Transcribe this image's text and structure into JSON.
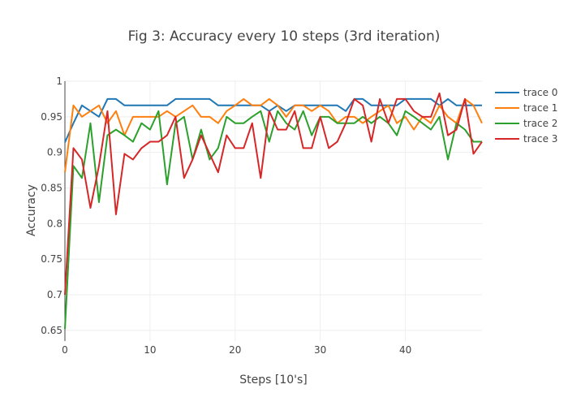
{
  "chart_data": {
    "type": "line",
    "title": "Fig 3: Accuracy every 10 steps (3rd iteration)",
    "xlabel": "Steps [10's]",
    "ylabel": "Accuracy",
    "xlim": [
      0,
      49
    ],
    "ylim": [
      0.635,
      1.0
    ],
    "xticks": [
      0,
      10,
      20,
      30,
      40
    ],
    "yticks": [
      0.65,
      0.7,
      0.75,
      0.8,
      0.85,
      0.9,
      0.95,
      1
    ],
    "ytick_labels": [
      "0.65",
      "0.7",
      "0.75",
      "0.8",
      "0.85",
      "0.9",
      "0.95",
      "1"
    ],
    "grid": true,
    "legend_position": "top-right",
    "x": [
      0,
      1,
      2,
      3,
      4,
      5,
      6,
      7,
      8,
      9,
      10,
      11,
      12,
      13,
      14,
      15,
      16,
      17,
      18,
      19,
      20,
      21,
      22,
      23,
      24,
      25,
      26,
      27,
      28,
      29,
      30,
      31,
      32,
      33,
      34,
      35,
      36,
      37,
      38,
      39,
      40,
      41,
      42,
      43,
      44,
      45,
      46,
      47,
      48,
      49
    ],
    "series": [
      {
        "name": "trace 0",
        "color": "#1f77b4",
        "values": [
          0.914,
          0.941,
          0.966,
          0.958,
          0.95,
          0.975,
          0.975,
          0.966,
          0.966,
          0.966,
          0.966,
          0.966,
          0.966,
          0.975,
          0.975,
          0.975,
          0.975,
          0.975,
          0.966,
          0.966,
          0.966,
          0.966,
          0.966,
          0.966,
          0.958,
          0.966,
          0.958,
          0.966,
          0.966,
          0.966,
          0.966,
          0.966,
          0.966,
          0.958,
          0.975,
          0.975,
          0.966,
          0.966,
          0.966,
          0.966,
          0.975,
          0.975,
          0.975,
          0.975,
          0.966,
          0.975,
          0.966,
          0.966,
          0.966,
          0.966
        ]
      },
      {
        "name": "trace 1",
        "color": "#ff7f0e",
        "values": [
          0.872,
          0.966,
          0.95,
          0.958,
          0.966,
          0.941,
          0.958,
          0.924,
          0.95,
          0.95,
          0.95,
          0.95,
          0.958,
          0.95,
          0.958,
          0.966,
          0.95,
          0.95,
          0.941,
          0.958,
          0.966,
          0.975,
          0.966,
          0.966,
          0.975,
          0.966,
          0.95,
          0.966,
          0.966,
          0.958,
          0.966,
          0.958,
          0.941,
          0.95,
          0.95,
          0.941,
          0.95,
          0.958,
          0.966,
          0.941,
          0.95,
          0.932,
          0.95,
          0.941,
          0.966,
          0.95,
          0.941,
          0.975,
          0.966,
          0.941
        ]
      },
      {
        "name": "trace 2",
        "color": "#2ca02c",
        "values": [
          0.652,
          0.881,
          0.864,
          0.941,
          0.83,
          0.924,
          0.932,
          0.924,
          0.915,
          0.941,
          0.932,
          0.958,
          0.855,
          0.941,
          0.95,
          0.89,
          0.932,
          0.89,
          0.906,
          0.95,
          0.941,
          0.941,
          0.95,
          0.958,
          0.915,
          0.958,
          0.941,
          0.932,
          0.958,
          0.924,
          0.95,
          0.95,
          0.941,
          0.941,
          0.941,
          0.95,
          0.941,
          0.95,
          0.941,
          0.924,
          0.958,
          0.95,
          0.941,
          0.932,
          0.95,
          0.89,
          0.941,
          0.932,
          0.915,
          0.915
        ]
      },
      {
        "name": "trace 3",
        "color": "#d62728",
        "values": [
          0.7,
          0.906,
          0.89,
          0.822,
          0.881,
          0.958,
          0.813,
          0.898,
          0.89,
          0.906,
          0.915,
          0.915,
          0.924,
          0.95,
          0.864,
          0.89,
          0.924,
          0.898,
          0.872,
          0.924,
          0.906,
          0.906,
          0.941,
          0.864,
          0.958,
          0.932,
          0.932,
          0.958,
          0.906,
          0.906,
          0.95,
          0.906,
          0.915,
          0.941,
          0.975,
          0.966,
          0.915,
          0.975,
          0.941,
          0.975,
          0.975,
          0.958,
          0.95,
          0.95,
          0.983,
          0.924,
          0.932,
          0.975,
          0.898,
          0.915
        ]
      }
    ]
  }
}
